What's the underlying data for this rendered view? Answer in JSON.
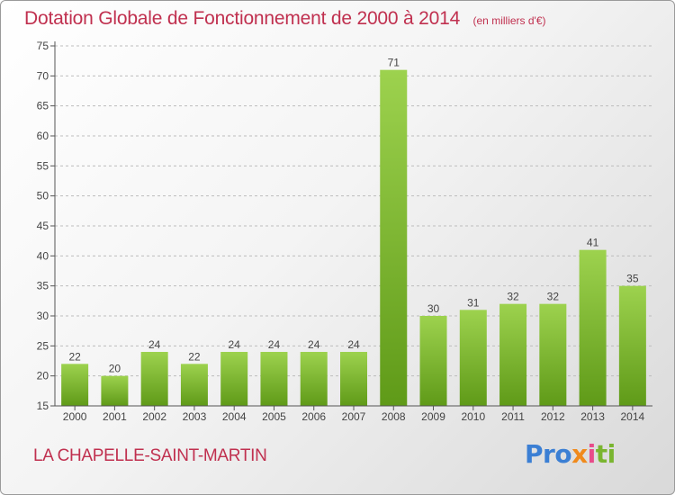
{
  "header": {
    "title": "Dotation Globale de Fonctionnement de 2000 à 2014",
    "units": "(en milliers d'€)"
  },
  "footer": {
    "commune": "LA CHAPELLE-SAINT-MARTIN",
    "logo": "Proxiti"
  },
  "colors": {
    "bar_light": "#9dd24e",
    "bar_dark": "#5f9a18",
    "title": "#c0304f",
    "axis": "#555555"
  },
  "chart_data": {
    "type": "bar",
    "title": "Dotation Globale de Fonctionnement de 2000 à 2014",
    "subtitle": "(en milliers d'€)",
    "xlabel": "",
    "ylabel": "",
    "categories": [
      "2000",
      "2001",
      "2002",
      "2003",
      "2004",
      "2005",
      "2006",
      "2007",
      "2008",
      "2009",
      "2010",
      "2011",
      "2012",
      "2013",
      "2014"
    ],
    "values": [
      22,
      20,
      24,
      22,
      24,
      24,
      24,
      24,
      71,
      30,
      31,
      32,
      32,
      41,
      35
    ],
    "ylim": [
      15,
      75
    ],
    "yticks": [
      15,
      20,
      25,
      30,
      35,
      40,
      45,
      50,
      55,
      60,
      65,
      70,
      75
    ],
    "grid": "horizontal dashed",
    "legend": "none"
  }
}
